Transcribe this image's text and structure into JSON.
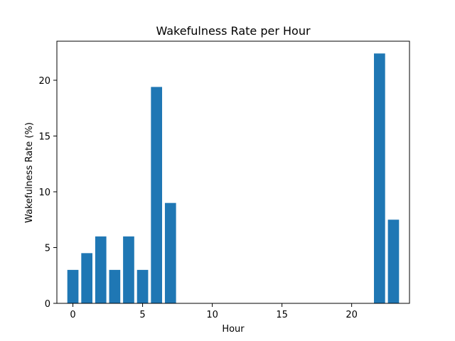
{
  "chart_data": {
    "type": "bar",
    "title": "Wakefulness Rate per Hour",
    "xlabel": "Hour",
    "ylabel": "Wakefulness Rate (%)",
    "x": [
      0,
      1,
      2,
      3,
      4,
      5,
      6,
      7,
      8,
      9,
      10,
      11,
      12,
      13,
      14,
      15,
      16,
      17,
      18,
      19,
      20,
      21,
      22,
      23
    ],
    "values": [
      3.0,
      4.5,
      6.0,
      3.0,
      6.0,
      3.0,
      19.4,
      9.0,
      0,
      0,
      0,
      0,
      0,
      0,
      0,
      0,
      0,
      0,
      0,
      0,
      0,
      0,
      22.4,
      7.5
    ],
    "xlim": [
      -1.15,
      24.15
    ],
    "ylim": [
      0,
      23.5
    ],
    "xticks": [
      0,
      5,
      10,
      15,
      20
    ],
    "yticks": [
      0,
      5,
      10,
      15,
      20
    ],
    "bar_color": "#1f77b4",
    "grid": false,
    "legend": "none"
  }
}
